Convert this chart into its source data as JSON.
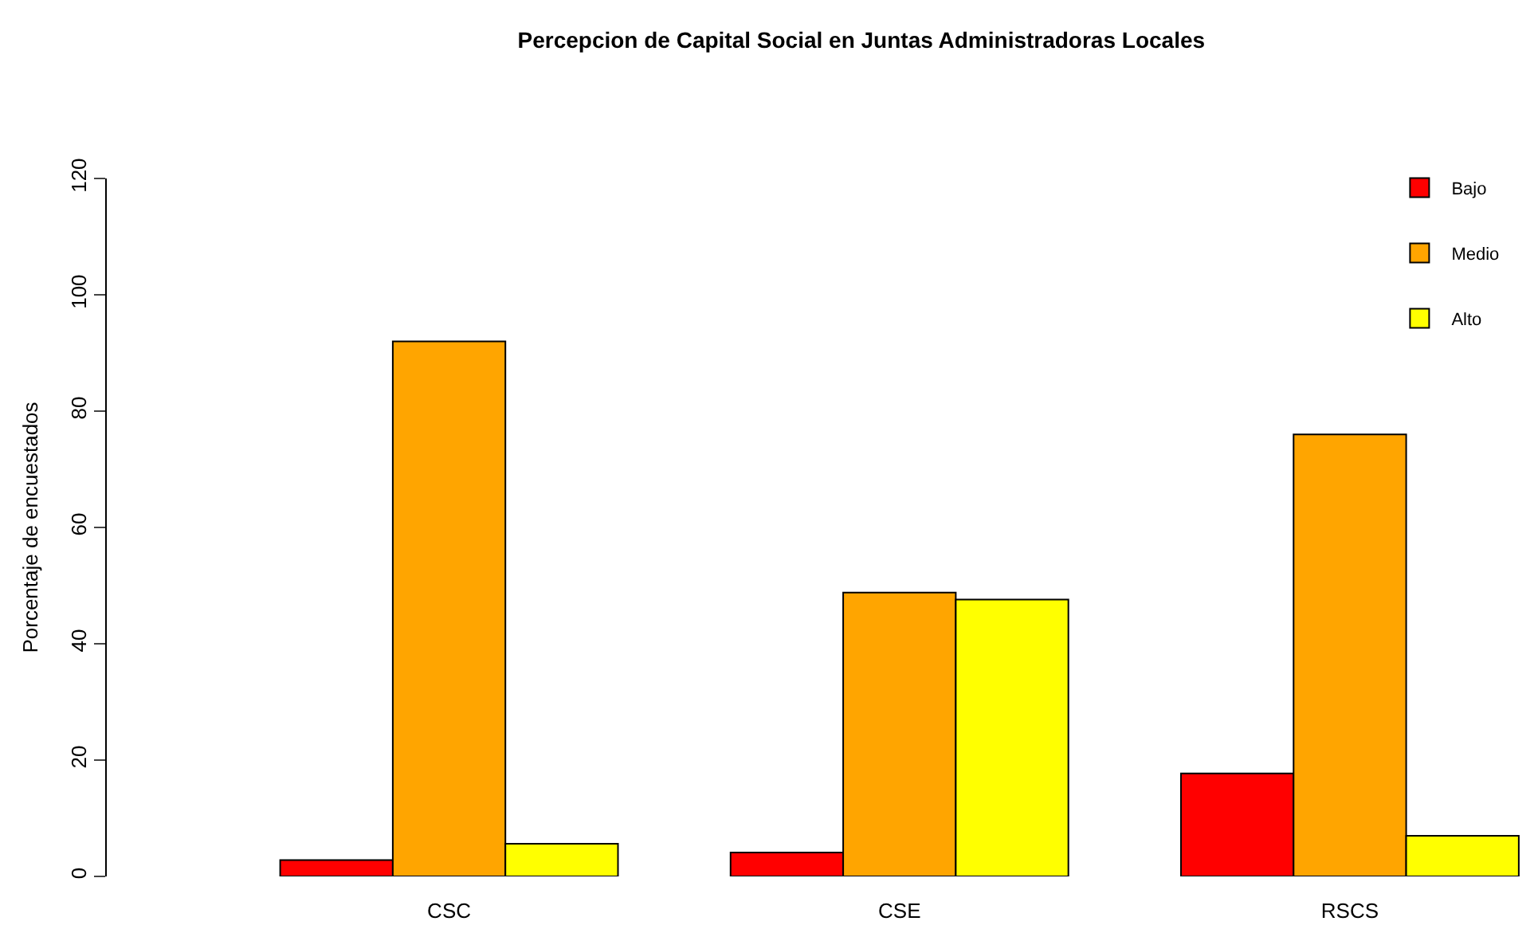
{
  "chart_data": {
    "type": "bar",
    "title": "Percepcion de Capital Social en Juntas Administradoras Locales",
    "ylabel": "Porcentaje de encuestados",
    "categories": [
      "CSC",
      "CSE",
      "RSCS"
    ],
    "series": [
      {
        "name": "Bajo",
        "color": "#ff0000",
        "values": [
          2.8,
          4.1,
          17.7
        ]
      },
      {
        "name": "Medio",
        "color": "#ffa500",
        "values": [
          92.0,
          48.8,
          76.0
        ]
      },
      {
        "name": "Alto",
        "color": "#ffff00",
        "values": [
          5.6,
          47.6,
          7.0
        ]
      }
    ],
    "ylim": [
      0,
      120
    ],
    "yticks": [
      0,
      20,
      40,
      60,
      80,
      100,
      120
    ],
    "legend": "top right",
    "grid": false
  }
}
